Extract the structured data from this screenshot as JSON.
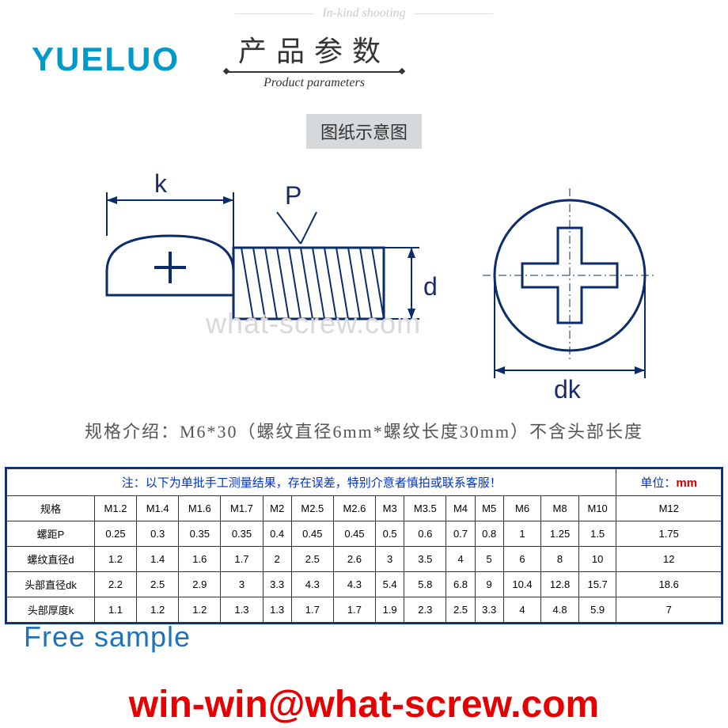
{
  "banner_text": "In-kind shooting",
  "logo": "YUELUO",
  "title_cn": "产品参数",
  "title_en": "Product parameters",
  "sub_label": "图纸示意图",
  "dim_k": "k",
  "dim_P": "P",
  "dim_d": "d",
  "dim_dk": "dk",
  "watermark": "what-screw.com",
  "spec_note": "规格介绍：M6*30（螺纹直径6mm*螺纹长度30mm）不含头部长度",
  "table_note": "注：以下为单批手工测量结果，存在误差，特别介意者慎拍或联系客服！",
  "unit_label": "单位：",
  "unit_value": "mm",
  "row_headers": [
    "规格",
    "螺距P",
    "螺纹直径d",
    "头部直径dk",
    "头部厚度k"
  ],
  "columns": [
    "M1.2",
    "M1.4",
    "M1.6",
    "M1.7",
    "M2",
    "M2.5",
    "M2.6",
    "M3",
    "M3.5",
    "M4",
    "M5",
    "M6",
    "M8",
    "M10",
    "M12"
  ],
  "rows": [
    [
      "0.25",
      "0.3",
      "0.35",
      "0.35",
      "0.4",
      "0.45",
      "0.45",
      "0.5",
      "0.6",
      "0.7",
      "0.8",
      "1",
      "1.25",
      "1.5",
      "1.75"
    ],
    [
      "1.2",
      "1.4",
      "1.6",
      "1.7",
      "2",
      "2.5",
      "2.6",
      "3",
      "3.5",
      "4",
      "5",
      "6",
      "8",
      "10",
      "12"
    ],
    [
      "2.2",
      "2.5",
      "2.9",
      "3",
      "3.3",
      "4.3",
      "4.3",
      "5.4",
      "5.8",
      "6.8",
      "9",
      "10.4",
      "12.8",
      "15.7",
      "18.6"
    ],
    [
      "1.1",
      "1.2",
      "1.2",
      "1.3",
      "1.3",
      "1.7",
      "1.7",
      "1.9",
      "2.3",
      "2.5",
      "3.3",
      "4",
      "4.8",
      "5.9",
      "7"
    ]
  ],
  "free_sample": "Free sample",
  "email": "win-win@what-screw.com",
  "colors": {
    "logo": "#0099cc",
    "diagram_stroke": "#0b2b6b",
    "note_text": "#0033cc",
    "email": "#e60000",
    "sample": "#1e73be"
  }
}
